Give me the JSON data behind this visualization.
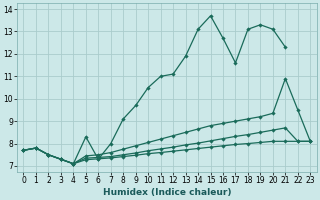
{
  "xlabel": "Humidex (Indice chaleur)",
  "bg_color": "#cce8e8",
  "grid_color": "#aacccc",
  "line_color": "#1a6b5a",
  "xlim": [
    -0.5,
    23.5
  ],
  "ylim": [
    6.75,
    14.25
  ],
  "xticks": [
    0,
    1,
    2,
    3,
    4,
    5,
    6,
    7,
    8,
    9,
    10,
    11,
    12,
    13,
    14,
    15,
    16,
    17,
    18,
    19,
    20,
    21,
    22,
    23
  ],
  "yticks": [
    7,
    8,
    9,
    10,
    11,
    12,
    13,
    14
  ],
  "line1_x": [
    0,
    1,
    2,
    3,
    4,
    5,
    6,
    7,
    8,
    9,
    10,
    11,
    12,
    13,
    14,
    15,
    16,
    17,
    18,
    19,
    20,
    21
  ],
  "line1_y": [
    7.7,
    7.8,
    7.5,
    7.3,
    7.1,
    8.3,
    7.3,
    8.0,
    9.1,
    9.7,
    10.5,
    11.0,
    11.1,
    11.9,
    13.1,
    13.7,
    12.7,
    11.6,
    13.1,
    13.3,
    13.1,
    12.3
  ],
  "line2_x": [
    0,
    1,
    2,
    3,
    4,
    5,
    6,
    7,
    8,
    9,
    10,
    11,
    12,
    13,
    14,
    15,
    16,
    17,
    18,
    19,
    20,
    21,
    22,
    23
  ],
  "line2_y": [
    7.7,
    7.8,
    7.5,
    7.3,
    7.1,
    7.45,
    7.5,
    7.6,
    7.75,
    7.9,
    8.05,
    8.2,
    8.35,
    8.5,
    8.65,
    8.8,
    8.9,
    9.0,
    9.1,
    9.2,
    9.35,
    10.9,
    9.5,
    8.1
  ],
  "line3_x": [
    0,
    1,
    2,
    3,
    4,
    5,
    6,
    7,
    8,
    9,
    10,
    11,
    12,
    13,
    14,
    15,
    16,
    17,
    18,
    19,
    20,
    21,
    22,
    23
  ],
  "line3_y": [
    7.7,
    7.8,
    7.5,
    7.3,
    7.1,
    7.35,
    7.38,
    7.42,
    7.5,
    7.58,
    7.68,
    7.76,
    7.84,
    7.94,
    8.02,
    8.12,
    8.22,
    8.32,
    8.4,
    8.5,
    8.6,
    8.7,
    8.1,
    8.1
  ],
  "line4_x": [
    0,
    1,
    2,
    3,
    4,
    5,
    6,
    7,
    8,
    9,
    10,
    11,
    12,
    13,
    14,
    15,
    16,
    17,
    18,
    19,
    20,
    21,
    22,
    23
  ],
  "line4_y": [
    7.7,
    7.8,
    7.5,
    7.3,
    7.1,
    7.28,
    7.32,
    7.36,
    7.42,
    7.48,
    7.55,
    7.6,
    7.66,
    7.72,
    7.78,
    7.84,
    7.9,
    7.96,
    8.0,
    8.05,
    8.1,
    8.1,
    8.1,
    8.1
  ]
}
